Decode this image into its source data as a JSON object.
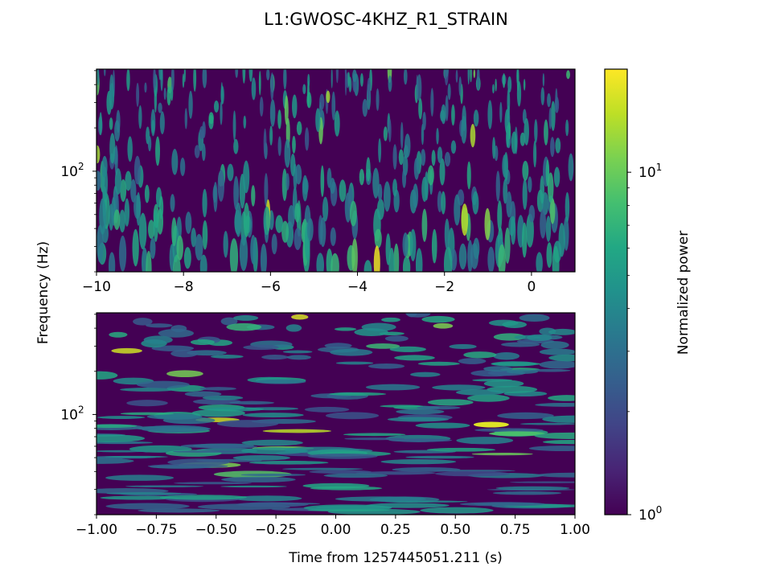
{
  "chart_data": {
    "title": "L1:GWOSC-4KHZ_R1_STRAIN",
    "ylabel": "Frequency (Hz)",
    "xlabel": "Time from 1257445051.211 (s)",
    "colorbar": {
      "label": "Normalized power",
      "scale": "log",
      "range": [
        1,
        20
      ],
      "colormap": "viridis",
      "ticks": [
        {
          "value": 1,
          "base": "10",
          "exp": "0"
        },
        {
          "value": 10,
          "base": "10",
          "exp": "1"
        }
      ]
    },
    "panels": [
      {
        "type": "heatmap",
        "xlim": [
          -10,
          1
        ],
        "ylim": [
          20,
          512
        ],
        "yscale": "log",
        "xticks": [
          -10,
          -8,
          -6,
          -4,
          -2,
          0
        ],
        "xtick_labels": [
          "−10",
          "−8",
          "−6",
          "−4",
          "−2",
          "0"
        ],
        "yticks": [
          {
            "value": 100,
            "base": "10",
            "exp": "2"
          }
        ],
        "description": "Q-transform spectrogram over 11 s; short vertical noise streaks, brighter near low frequencies"
      },
      {
        "type": "heatmap",
        "xlim": [
          -1,
          1
        ],
        "ylim": [
          20,
          512
        ],
        "yscale": "log",
        "xticks": [
          -1,
          -0.75,
          -0.5,
          -0.25,
          0,
          0.25,
          0.5,
          0.75,
          1
        ],
        "xtick_labels": [
          "−1.00",
          "−0.75",
          "−0.50",
          "−0.25",
          "0.00",
          "0.25",
          "0.50",
          "0.75",
          "1.00"
        ],
        "yticks": [
          {
            "value": 100,
            "base": "10",
            "exp": "2"
          }
        ],
        "description": "Zoomed Q-transform over 2 s; horizontal noise streaks, bright spot near t=0.65 s, f~85 Hz"
      }
    ]
  }
}
